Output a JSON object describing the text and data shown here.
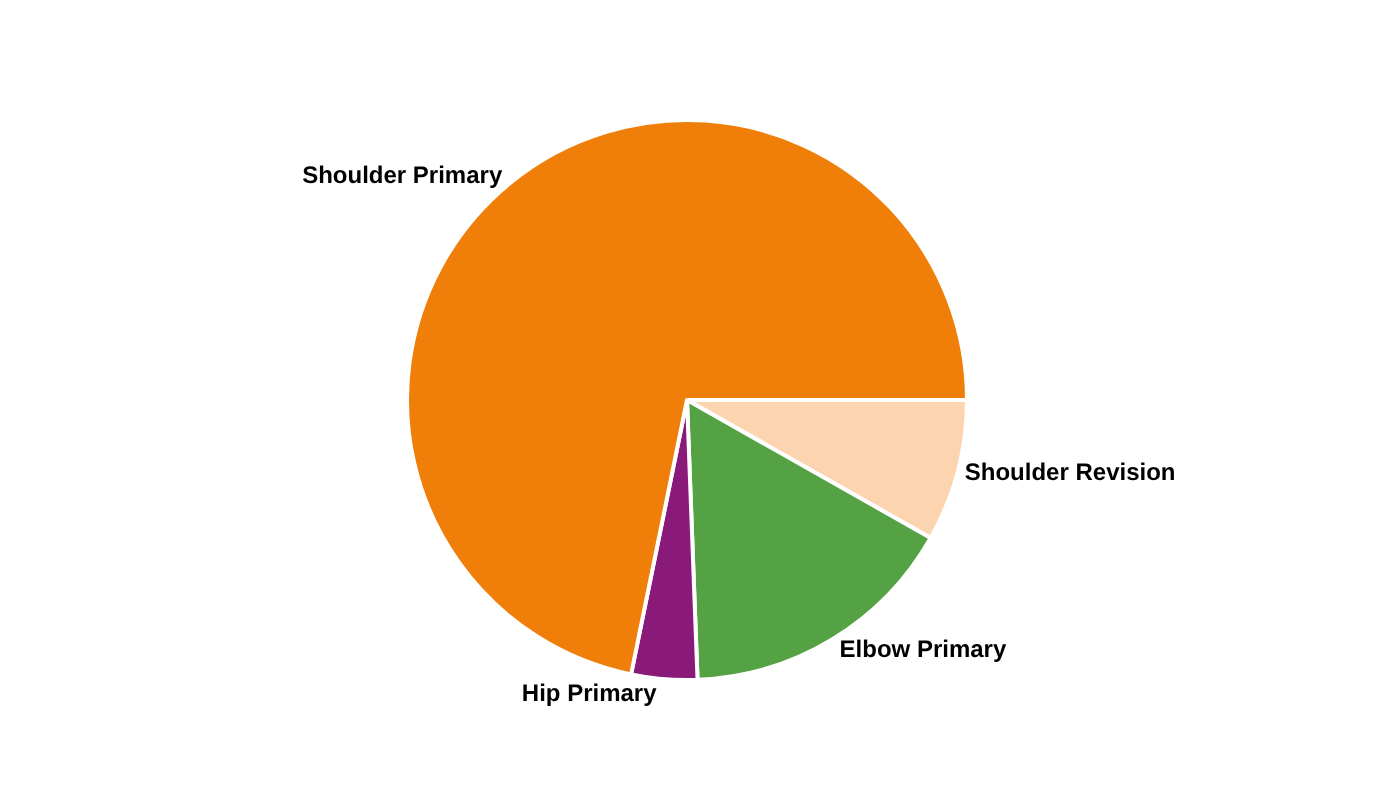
{
  "chart_data": {
    "type": "pie",
    "categories": [
      "Shoulder Revision",
      "Elbow Primary",
      "Hip Primary",
      "Shoulder Primary"
    ],
    "values": [
      8.2,
      16.2,
      3.8,
      71.8
    ],
    "colors": [
      "#fcd5b0",
      "#54a244",
      "#8a1a7a",
      "#f07f09"
    ],
    "legend": false
  }
}
